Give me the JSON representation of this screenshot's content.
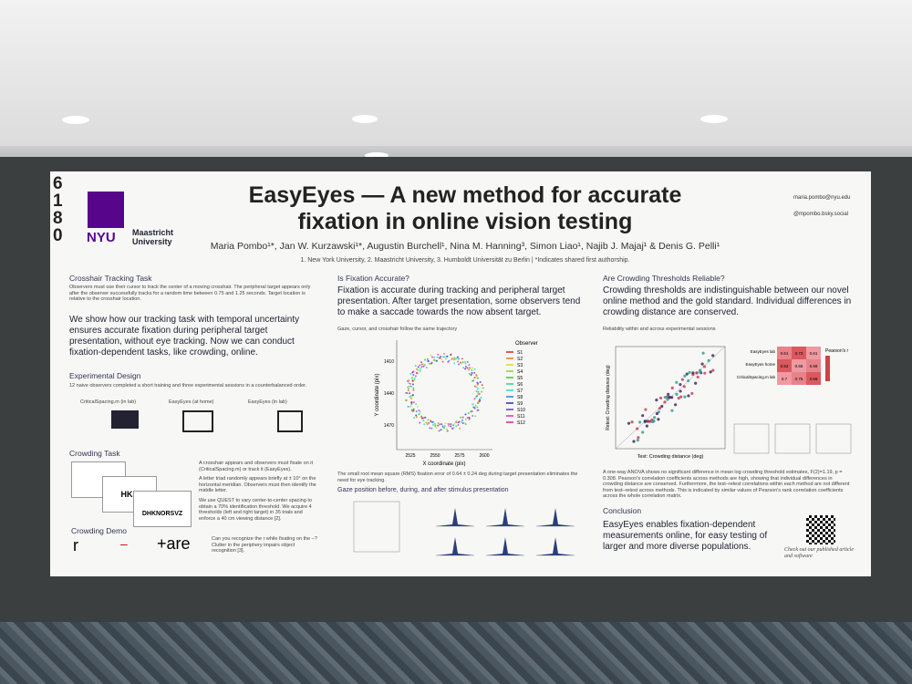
{
  "poster": {
    "number": "6180",
    "logos": [
      "NYU",
      "Maastricht University"
    ],
    "title_lines": [
      "EasyEyes — A new method for accurate",
      "fixation in online vision testing"
    ],
    "authors": "Maria Pombo¹*, Jan W. Kurzawski¹*, Augustin Burchell¹, Nina M. Hanning³, Simon Liao¹, Najib J. Majaj¹ & Denis G. Pelli¹",
    "affiliations": "1. New York University, 2. Maastricht University, 3. Humboldt Universität zu Berlin | *Indicates shared first authorship.",
    "contact": [
      "maria.pombo@nyu.edu",
      "@mpombo.bsky.social"
    ],
    "left": {
      "tracking_heading": "Crosshair Tracking Task",
      "tracking_body": "Observers must use their cursor to track the center of a moving crosshair. The peripheral target appears only after the observer successfully tracks for a random time between 0.75 and 1.25 seconds. Target location is relative to the crosshair location.",
      "highlight": "We show how our tracking task with temporal uncertainty ensures accurate fixation during peripheral target presentation, without eye tracking. Now we can conduct fixation-dependent tasks, like crowding, online.",
      "design_heading": "Experimental Design",
      "design_body": "12 naive observers completed a short training and three experimental sessions in a counterbalanced order.",
      "design_labels": [
        "CriticalSpacing.m (in lab)",
        "EasyEyes (at home)",
        "EasyEyes (in lab)"
      ],
      "crowding_heading": "Crowding Task",
      "crowding_body": [
        "A crosshair appears and observers must fixate on it (CriticalSpacing.m) or track it (EasyEyes).",
        "A letter triad randomly appears briefly at ± 10° on the horizontal meridian. Observers must then identify the middle letter.",
        "We use QUEST to vary center-to-center spacing to obtain a 70% identification threshold. We acquire 4 thresholds (left and right target) in 35 trials and enforce a 40 cm viewing distance [2]."
      ],
      "stimuli": [
        "HKS",
        "DHKNORSVZ"
      ],
      "demo_heading": "Crowding Demo",
      "demo_items": [
        "r",
        "–",
        "+are"
      ],
      "demo_body": "Can you recognize the r while fixating on the –? Clutter in the periphery impairs object recognition [3]."
    },
    "middle": {
      "heading": "Is Fixation Accurate?",
      "body": "Fixation is accurate during tracking and peripheral target presentation. After target presentation, some observers tend to make a saccade towards the now absent target.",
      "fig_caption": "Gaze, cursor, and crosshair follow the same trajectory",
      "x_label": "X coordinate (pix)",
      "y_label": "Y coordinate (pix)",
      "x_ticks": [
        "2525",
        "2550",
        "2575",
        "2600"
      ],
      "y_ticks": [
        "1410",
        "1440",
        "1470"
      ],
      "legend_title": "Observer",
      "observers": [
        "S1",
        "S2",
        "S3",
        "S4",
        "S5",
        "S6",
        "S7",
        "S8",
        "S9",
        "S10",
        "S11",
        "S12"
      ],
      "rms_note": "The small root mean square (RMS) fixation error of 0.64 ± 0.24 deg during target presentation eliminates the need for eye tracking.",
      "gaze_heading": "Gaze position before, during, and after stimulus presentation"
    },
    "right": {
      "heading": "Are Crowding Thresholds Reliable?",
      "body": "Crowding thresholds are indistinguishable between our novel online method and the gold standard. Individual differences in crowding distance are conserved.",
      "fig_caption": "Reliability within and across experimental sessions",
      "x_label": "Test: Crowding distance (deg)",
      "y_label": "Retest: Crowding distance (deg)",
      "matrix_rows": [
        "EasyEyes lab",
        "EasyEyes home",
        "CriticalSpacing.m lab"
      ],
      "matrix": [
        [
          "0.61",
          "0.73",
          "0.61"
        ],
        [
          "0.53",
          "0.65",
          "0.69"
        ],
        [
          "0.7",
          "0.75",
          "0.68"
        ]
      ],
      "matrix_legend": "Pearson's r",
      "anova": "A one-way ANOVA shows no significant difference in mean log crowding threshold estimates, F(2)=1.19, p = 0.308. Pearson's correlation coefficients across methods are high, showing that individual differences in crowding distance are conserved. Furthermore, the test–retest correlations within each method are not different from test–retest across methods. This is indicated by similar values of Pearson's rank correlation coefficients across the whole correlation matrix.",
      "conclusion_heading": "Conclusion",
      "conclusion": "EasyEyes enables fixation-dependent measurements online, for easy testing of larger and more diverse populations.",
      "qr_note": "Check out our published article and software"
    }
  }
}
